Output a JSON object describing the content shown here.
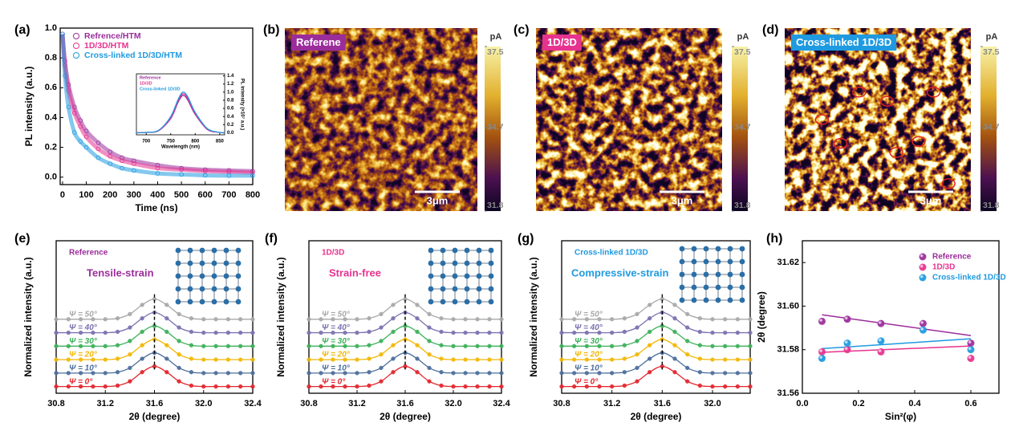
{
  "chart_data": [
    {
      "type": "line",
      "panel_label": "(a)",
      "x_label": "Time (ns)",
      "y_label": "PL intensity (a.u.)",
      "xlim": [
        -10,
        800
      ],
      "xticks": [
        0,
        100,
        200,
        300,
        400,
        500,
        600,
        700,
        800
      ],
      "ylim": [
        -0.05,
        1.0
      ],
      "yticks": [
        {
          "value": 0,
          "label": "0.0"
        },
        0.2,
        0.4,
        0.6,
        0.8,
        {
          "value": 1,
          "label": "1.0"
        }
      ],
      "x": [
        0,
        10,
        25,
        50,
        75,
        100,
        150,
        200,
        250,
        300,
        400,
        500,
        600,
        700,
        800
      ],
      "series": [
        {
          "name": "Refrence/HTM",
          "color": "#9b2d9b",
          "values": [
            0.96,
            0.78,
            0.62,
            0.47,
            0.38,
            0.31,
            0.23,
            0.17,
            0.13,
            0.11,
            0.08,
            0.06,
            0.05,
            0.045,
            0.04
          ]
        },
        {
          "name": "1D/3D/HTM",
          "color": "#e6338f",
          "values": [
            0.96,
            0.75,
            0.58,
            0.43,
            0.34,
            0.27,
            0.19,
            0.14,
            0.11,
            0.09,
            0.06,
            0.05,
            0.04,
            0.035,
            0.03
          ]
        },
        {
          "name": "Cross-linked 1D/3D/HTM",
          "color": "#1f9ae0",
          "values": [
            0.96,
            0.68,
            0.47,
            0.3,
            0.24,
            0.2,
            0.13,
            0.09,
            0.06,
            0.045,
            0.025,
            0.018,
            0.012,
            0.01,
            0.01
          ]
        }
      ],
      "inset": {
        "type": "line",
        "x_label": "Wavelength (nm)",
        "y_label": "PL intensity (×10⁷ a.u.)",
        "xlim": [
          680,
          860
        ],
        "xticks": [
          700,
          750,
          800,
          850
        ],
        "ylim": [
          -0.05,
          1.45
        ],
        "yticks": [
          {
            "value": 0,
            "label": "0.0"
          },
          0.2,
          0.4,
          0.6,
          0.8,
          {
            "value": 1,
            "label": "1.0"
          },
          1.2,
          1.4
        ],
        "x": [
          680,
          700,
          725,
          750,
          765,
          775,
          785,
          800,
          825,
          850,
          860
        ],
        "series": [
          {
            "name": "Reference",
            "color": "#9b2d9b",
            "values": [
              0,
              0.01,
              0.05,
              0.35,
              0.75,
              0.92,
              0.8,
              0.45,
              0.08,
              0.01,
              0
            ]
          },
          {
            "name": "1D/3D",
            "color": "#e6338f",
            "values": [
              0,
              0.01,
              0.05,
              0.37,
              0.78,
              0.96,
              0.84,
              0.47,
              0.09,
              0.01,
              0
            ]
          },
          {
            "name": "Cross-linked 1D/3D",
            "color": "#1f9ae0",
            "values": [
              0,
              0.01,
              0.06,
              0.4,
              0.82,
              1.0,
              0.88,
              0.5,
              0.1,
              0.01,
              0
            ]
          }
        ]
      }
    },
    {
      "type": "heatmap",
      "panel_label": "(b)",
      "label": "Referene",
      "label_color": "#9b2d9b",
      "colorbar_unit": "pA",
      "clim": [
        31.8,
        37.5
      ],
      "colorbar_ticks": [
        31.8,
        34.7,
        37.5
      ],
      "scale_bar": "3μm"
    },
    {
      "type": "heatmap",
      "panel_label": "(c)",
      "label": "1D/3D",
      "label_color": "#e6338f",
      "colorbar_unit": "pA",
      "clim": [
        31.8,
        37.5
      ],
      "colorbar_ticks": [
        31.8,
        34.7,
        37.5
      ],
      "scale_bar": "3μm"
    },
    {
      "type": "heatmap",
      "panel_label": "(d)",
      "label": "Cross-linked 1D/3D",
      "label_color": "#1f9ae0",
      "colorbar_unit": "pA",
      "clim": [
        31.8,
        37.5
      ],
      "colorbar_ticks": [
        31.8,
        34.7,
        37.5
      ],
      "scale_bar": "3μm"
    },
    {
      "type": "line",
      "panel_label": "(e)",
      "sample": "Reference",
      "strain": "Tensile-strain",
      "color": "#9b2d9b",
      "x_label": "2θ (degree)",
      "y_label": "Normalized intensity (a.u.)",
      "xlim": [
        30.8,
        32.4
      ],
      "xticks": [
        30.8,
        31.2,
        31.6,
        {
          "value": 32,
          "label": "32.0"
        },
        32.4
      ],
      "ylim": [
        -0.3,
        6.5
      ],
      "x": [
        30.8,
        30.9,
        31.0,
        31.1,
        31.2,
        31.3,
        31.4,
        31.5,
        31.6,
        31.7,
        31.8,
        31.9,
        32.0,
        32.1,
        32.2,
        32.3,
        32.4
      ],
      "series": [
        {
          "name": "Ψ = 0°",
          "color": "#e3262e",
          "values": [
            0,
            0,
            0,
            0,
            0,
            0.04,
            0.23,
            0.64,
            0.9,
            0.64,
            0.23,
            0.04,
            0,
            0,
            0,
            0,
            0
          ]
        },
        {
          "name": "Ψ = 10°",
          "color": "#4d6e9c",
          "values": [
            0.6,
            0.6,
            0.6,
            0.6,
            0.6,
            0.64,
            0.83,
            1.24,
            1.5,
            1.24,
            0.83,
            0.64,
            0.6,
            0.6,
            0.6,
            0.6,
            0.6
          ]
        },
        {
          "name": "Ψ = 20°",
          "color": "#f2b705",
          "values": [
            1.2,
            1.2,
            1.2,
            1.2,
            1.2,
            1.24,
            1.43,
            1.84,
            2.1,
            1.84,
            1.43,
            1.24,
            1.2,
            1.2,
            1.2,
            1.2,
            1.2
          ]
        },
        {
          "name": "Ψ = 30°",
          "color": "#3cb05a",
          "values": [
            1.8,
            1.8,
            1.8,
            1.8,
            1.8,
            1.84,
            2.03,
            2.44,
            2.7,
            2.44,
            2.03,
            1.84,
            1.8,
            1.8,
            1.8,
            1.8,
            1.8
          ]
        },
        {
          "name": "Ψ = 40°",
          "color": "#7a72b0",
          "values": [
            2.4,
            2.4,
            2.4,
            2.4,
            2.4,
            2.44,
            2.63,
            3.04,
            3.3,
            3.04,
            2.63,
            2.44,
            2.4,
            2.4,
            2.4,
            2.4,
            2.4
          ]
        },
        {
          "name": "Ψ = 50°",
          "color": "#a8a8a8",
          "values": [
            3,
            3,
            3,
            3,
            3,
            3.04,
            3.23,
            3.64,
            3.9,
            3.64,
            3.23,
            3.04,
            3,
            3,
            3,
            3,
            3
          ]
        }
      ]
    },
    {
      "type": "line",
      "panel_label": "(f)",
      "sample": "1D/3D",
      "strain": "Strain-free",
      "color": "#e6338f",
      "x_label": "2θ (degree)",
      "y_label": "Normalized intensity (a.u.)",
      "xlim": [
        30.8,
        32.4
      ],
      "xticks": [
        30.8,
        31.2,
        31.6,
        {
          "value": 32,
          "label": "32.0"
        },
        32.4
      ],
      "ylim": [
        -0.3,
        6.5
      ],
      "x": [
        30.8,
        30.9,
        31.0,
        31.1,
        31.2,
        31.3,
        31.4,
        31.5,
        31.6,
        31.7,
        31.8,
        31.9,
        32.0,
        32.1,
        32.2,
        32.3,
        32.4
      ],
      "series": [
        {
          "name": "Ψ = 0°",
          "color": "#e3262e",
          "values": [
            0,
            0,
            0,
            0,
            0,
            0.04,
            0.23,
            0.64,
            0.9,
            0.64,
            0.23,
            0.04,
            0,
            0,
            0,
            0,
            0
          ]
        },
        {
          "name": "Ψ = 10°",
          "color": "#4d6e9c",
          "values": [
            0.6,
            0.6,
            0.6,
            0.6,
            0.6,
            0.64,
            0.83,
            1.24,
            1.5,
            1.24,
            0.83,
            0.64,
            0.6,
            0.6,
            0.6,
            0.6,
            0.6
          ]
        },
        {
          "name": "Ψ = 20°",
          "color": "#f2b705",
          "values": [
            1.2,
            1.2,
            1.2,
            1.2,
            1.2,
            1.24,
            1.43,
            1.84,
            2.1,
            1.84,
            1.43,
            1.24,
            1.2,
            1.2,
            1.2,
            1.2,
            1.2
          ]
        },
        {
          "name": "Ψ = 30°",
          "color": "#3cb05a",
          "values": [
            1.8,
            1.8,
            1.8,
            1.8,
            1.8,
            1.84,
            2.03,
            2.44,
            2.7,
            2.44,
            2.03,
            1.84,
            1.8,
            1.8,
            1.8,
            1.8,
            1.8
          ]
        },
        {
          "name": "Ψ = 40°",
          "color": "#7a72b0",
          "values": [
            2.4,
            2.4,
            2.4,
            2.4,
            2.4,
            2.44,
            2.63,
            3.04,
            3.3,
            3.04,
            2.63,
            2.44,
            2.4,
            2.4,
            2.4,
            2.4,
            2.4
          ]
        },
        {
          "name": "Ψ = 50°",
          "color": "#a8a8a8",
          "values": [
            3,
            3,
            3,
            3,
            3,
            3.04,
            3.23,
            3.64,
            3.9,
            3.64,
            3.23,
            3.04,
            3,
            3,
            3,
            3,
            3
          ]
        }
      ]
    },
    {
      "type": "line",
      "panel_label": "(g)",
      "sample": "Cross-linked 1D/3D",
      "strain": "Compressive-strain",
      "color": "#1f9ae0",
      "x_label": "2θ (degree)",
      "y_label": "Normalized intensity (a.u.)",
      "xlim": [
        30.8,
        32.3
      ],
      "xticks": [
        30.8,
        31.2,
        31.6,
        {
          "value": 32,
          "label": "32.0"
        }
      ],
      "ylim": [
        -0.3,
        6.5
      ],
      "x": [
        30.8,
        30.9,
        31.0,
        31.1,
        31.2,
        31.3,
        31.4,
        31.5,
        31.6,
        31.7,
        31.8,
        31.9,
        32.0,
        32.1,
        32.2,
        32.3
      ],
      "series": [
        {
          "name": "Ψ = 0°",
          "color": "#e3262e",
          "values": [
            0,
            0,
            0,
            0,
            0,
            0.04,
            0.23,
            0.64,
            0.9,
            0.64,
            0.23,
            0.04,
            0,
            0,
            0,
            0
          ]
        },
        {
          "name": "Ψ = 10°",
          "color": "#4d6e9c",
          "values": [
            0.6,
            0.6,
            0.6,
            0.6,
            0.6,
            0.64,
            0.83,
            1.24,
            1.5,
            1.24,
            0.83,
            0.64,
            0.6,
            0.6,
            0.6,
            0.6
          ]
        },
        {
          "name": "Ψ = 20°",
          "color": "#f2b705",
          "values": [
            1.2,
            1.2,
            1.2,
            1.2,
            1.2,
            1.24,
            1.43,
            1.84,
            2.1,
            1.84,
            1.43,
            1.24,
            1.2,
            1.2,
            1.2,
            1.2
          ]
        },
        {
          "name": "Ψ = 30°",
          "color": "#3cb05a",
          "values": [
            1.8,
            1.8,
            1.8,
            1.8,
            1.8,
            1.84,
            2.03,
            2.44,
            2.7,
            2.44,
            2.03,
            1.84,
            1.8,
            1.8,
            1.8,
            1.8
          ]
        },
        {
          "name": "Ψ = 40°",
          "color": "#7a72b0",
          "values": [
            2.4,
            2.4,
            2.4,
            2.4,
            2.4,
            2.44,
            2.63,
            3.04,
            3.3,
            3.04,
            2.63,
            2.44,
            2.4,
            2.4,
            2.4,
            2.4
          ]
        },
        {
          "name": "Ψ = 50°",
          "color": "#a8a8a8",
          "values": [
            3,
            3,
            3,
            3,
            3,
            3.04,
            3.23,
            3.64,
            3.9,
            3.64,
            3.23,
            3.04,
            3,
            3,
            3,
            3
          ]
        }
      ]
    },
    {
      "type": "scatter",
      "panel_label": "(h)",
      "x_label": "Sin²(φ)",
      "y_label": "2θ (degree)",
      "xlim": [
        0,
        0.7
      ],
      "xticks": [
        {
          "value": 0,
          "label": "0.0"
        },
        0.2,
        0.4,
        0.6
      ],
      "ylim": [
        31.56,
        31.63
      ],
      "yticks": [
        31.56,
        31.58,
        {
          "value": 31.6,
          "label": "31.60"
        },
        31.62
      ],
      "series": [
        {
          "name": "Reference",
          "color": "#9b2d9b",
          "x": [
            0.07,
            0.16,
            0.28,
            0.43,
            0.6
          ],
          "values": [
            31.593,
            31.594,
            31.592,
            31.592,
            31.583
          ],
          "fit_values": [
            31.596,
            31.5865
          ]
        },
        {
          "name": "1D/3D",
          "color": "#e6338f",
          "x": [
            0.07,
            0.16,
            0.28,
            0.6
          ],
          "values": [
            31.579,
            31.58,
            31.579,
            31.576
          ],
          "fit_values": [
            31.5788,
            31.5817
          ]
        },
        {
          "name": "Cross-linked 1D/3D",
          "color": "#1f9ae0",
          "x": [
            0.07,
            0.16,
            0.28,
            0.43,
            0.6
          ],
          "values": [
            31.576,
            31.583,
            31.584,
            31.589,
            31.58
          ],
          "fit_values": [
            31.5805,
            31.585
          ]
        }
      ]
    }
  ]
}
